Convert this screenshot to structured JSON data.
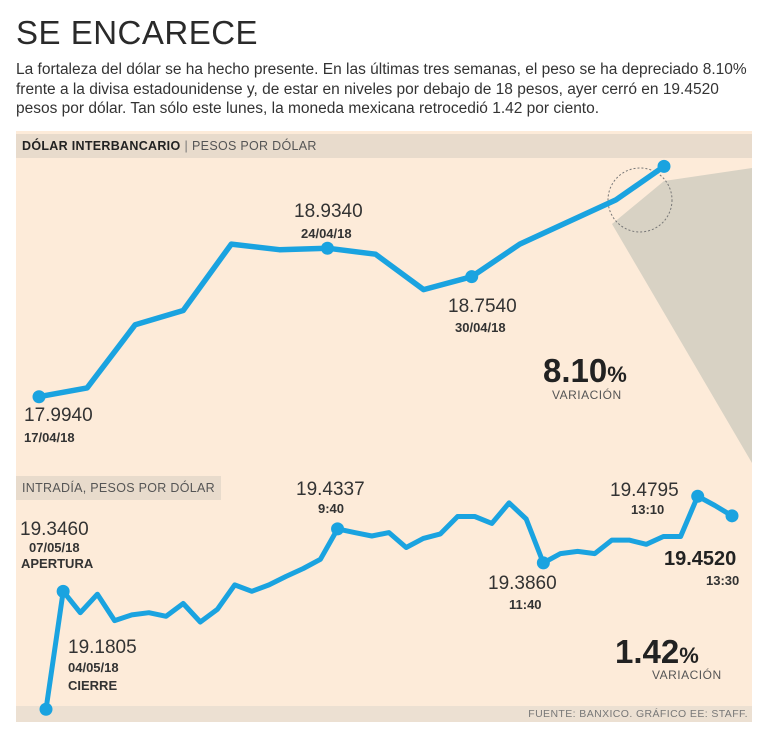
{
  "title": "SE ENCARECE",
  "intro": "La fortaleza del dólar se ha hecho presente. En las últimas tres semanas, el peso se ha depreciado 8.10% frente a la divisa estadounidense y, de estar en niveles por debajo de 18 pesos, ayer cerró en 19.4520 pesos por dólar. Tan sólo este lunes, la moneda mexicana retrocedió 1.42 por ciento.",
  "footer": "FUENTE: BANXICO. GRÁFICO EE: STAFF.",
  "colors": {
    "line": "#1aa3e0",
    "panel": "#fdebd9",
    "header": "#e8dbcc",
    "wedge": "#d8d2c4"
  },
  "chart_data": [
    {
      "type": "line",
      "header_bold": "DÓLAR INTERBANCARIO",
      "header_sub": "PESOS POR DÓLAR",
      "x": [
        0,
        1,
        2,
        3,
        4,
        5,
        6,
        7,
        8,
        9,
        10,
        11,
        12,
        13
      ],
      "values": [
        17.994,
        18.05,
        18.45,
        18.54,
        18.96,
        18.925,
        18.934,
        18.896,
        18.672,
        18.754,
        18.96,
        19.1,
        19.24,
        19.452
      ],
      "ylim": [
        17.6,
        19.6
      ],
      "annotations": [
        {
          "index": 0,
          "value": "17.9940",
          "date": "17/04/18"
        },
        {
          "index": 6,
          "value": "18.9340",
          "date": "24/04/18"
        },
        {
          "index": 9,
          "value": "18.7540",
          "date": "30/04/18"
        }
      ],
      "variation": {
        "number": "8.10",
        "percent": "%",
        "label": "VARIACIÓN"
      }
    },
    {
      "type": "line",
      "header": "INTRADÍA, PESOS POR DÓLAR",
      "x": [
        0,
        1,
        2,
        3,
        4,
        5,
        6,
        7,
        8,
        9,
        10,
        11,
        12,
        13,
        14,
        15,
        16,
        17,
        18,
        19,
        20,
        21,
        22,
        23,
        24,
        25,
        26,
        27,
        28,
        29,
        30,
        31,
        32,
        33,
        34,
        35,
        36,
        37,
        38,
        39,
        40
      ],
      "values": [
        19.1805,
        19.346,
        19.316,
        19.342,
        19.305,
        19.313,
        19.316,
        19.311,
        19.329,
        19.303,
        19.321,
        19.355,
        19.346,
        19.355,
        19.367,
        19.378,
        19.391,
        19.4337,
        19.4285,
        19.4237,
        19.4285,
        19.4075,
        19.4203,
        19.4267,
        19.4511,
        19.4511,
        19.4413,
        19.4702,
        19.4475,
        19.386,
        19.399,
        19.402,
        19.399,
        19.418,
        19.418,
        19.412,
        19.423,
        19.423,
        19.4795,
        19.4665,
        19.452
      ],
      "ylim": [
        19.15,
        19.55
      ],
      "annotations": [
        {
          "index": 0,
          "value": "19.1805",
          "date": "04/05/18",
          "note": "CIERRE"
        },
        {
          "index": 1,
          "value": "19.3460",
          "date": "07/05/18",
          "note": "APERTURA"
        },
        {
          "index": 17,
          "value": "19.4337",
          "time": "9:40"
        },
        {
          "index": 29,
          "value": "19.3860",
          "time": "11:40"
        },
        {
          "index": 38,
          "value": "19.4795",
          "time": "13:10"
        },
        {
          "index": 40,
          "value": "19.4520",
          "time": "13:30"
        }
      ],
      "variation": {
        "number": "1.42",
        "percent": "%",
        "label": "VARIACIÓN"
      }
    }
  ]
}
